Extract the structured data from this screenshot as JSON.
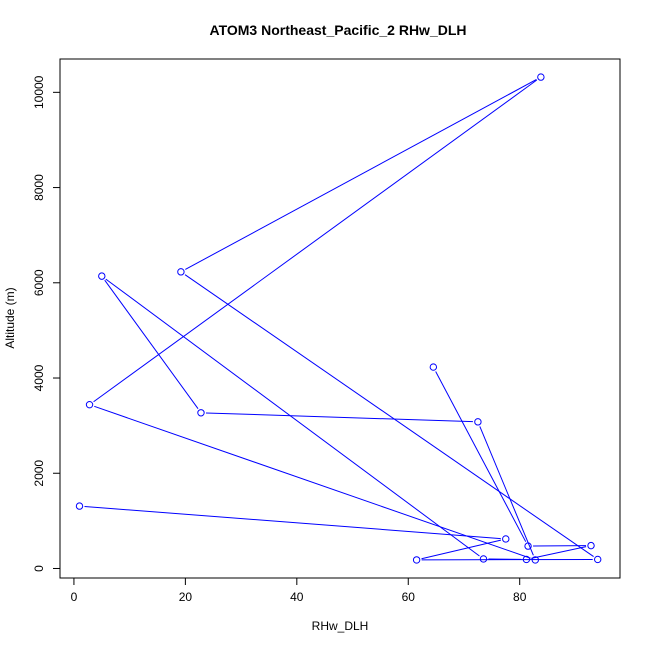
{
  "chart_data": {
    "type": "line",
    "title": "ATOM3 Northeast_Pacific_2 RHw_DLH",
    "xlabel": "RHw_DLH",
    "ylabel": "Altitude (m)",
    "xlim": [
      -2.5,
      98
    ],
    "ylim": [
      -200,
      10700
    ],
    "x_ticks": [
      0,
      20,
      40,
      60,
      80
    ],
    "y_ticks": [
      0,
      2000,
      4000,
      6000,
      8000,
      10000
    ],
    "grid": false,
    "series": [
      {
        "color": "#0000ff",
        "marker": "open-circle",
        "points": [
          {
            "x": 64.5,
            "y": 4230
          },
          {
            "x": 81.5,
            "y": 470
          },
          {
            "x": 92.8,
            "y": 480
          },
          {
            "x": 81.2,
            "y": 190
          },
          {
            "x": 73.5,
            "y": 200
          },
          {
            "x": 5.0,
            "y": 6140
          },
          {
            "x": 22.8,
            "y": 3270
          },
          {
            "x": 72.5,
            "y": 3080
          },
          {
            "x": 82.8,
            "y": 180
          },
          {
            "x": 2.8,
            "y": 3440
          },
          {
            "x": 83.8,
            "y": 10320
          },
          {
            "x": 19.2,
            "y": 6230
          },
          {
            "x": 94.0,
            "y": 190
          },
          {
            "x": 61.5,
            "y": 180
          },
          {
            "x": 77.5,
            "y": 620
          },
          {
            "x": 1.0,
            "y": 1310
          }
        ]
      }
    ]
  }
}
